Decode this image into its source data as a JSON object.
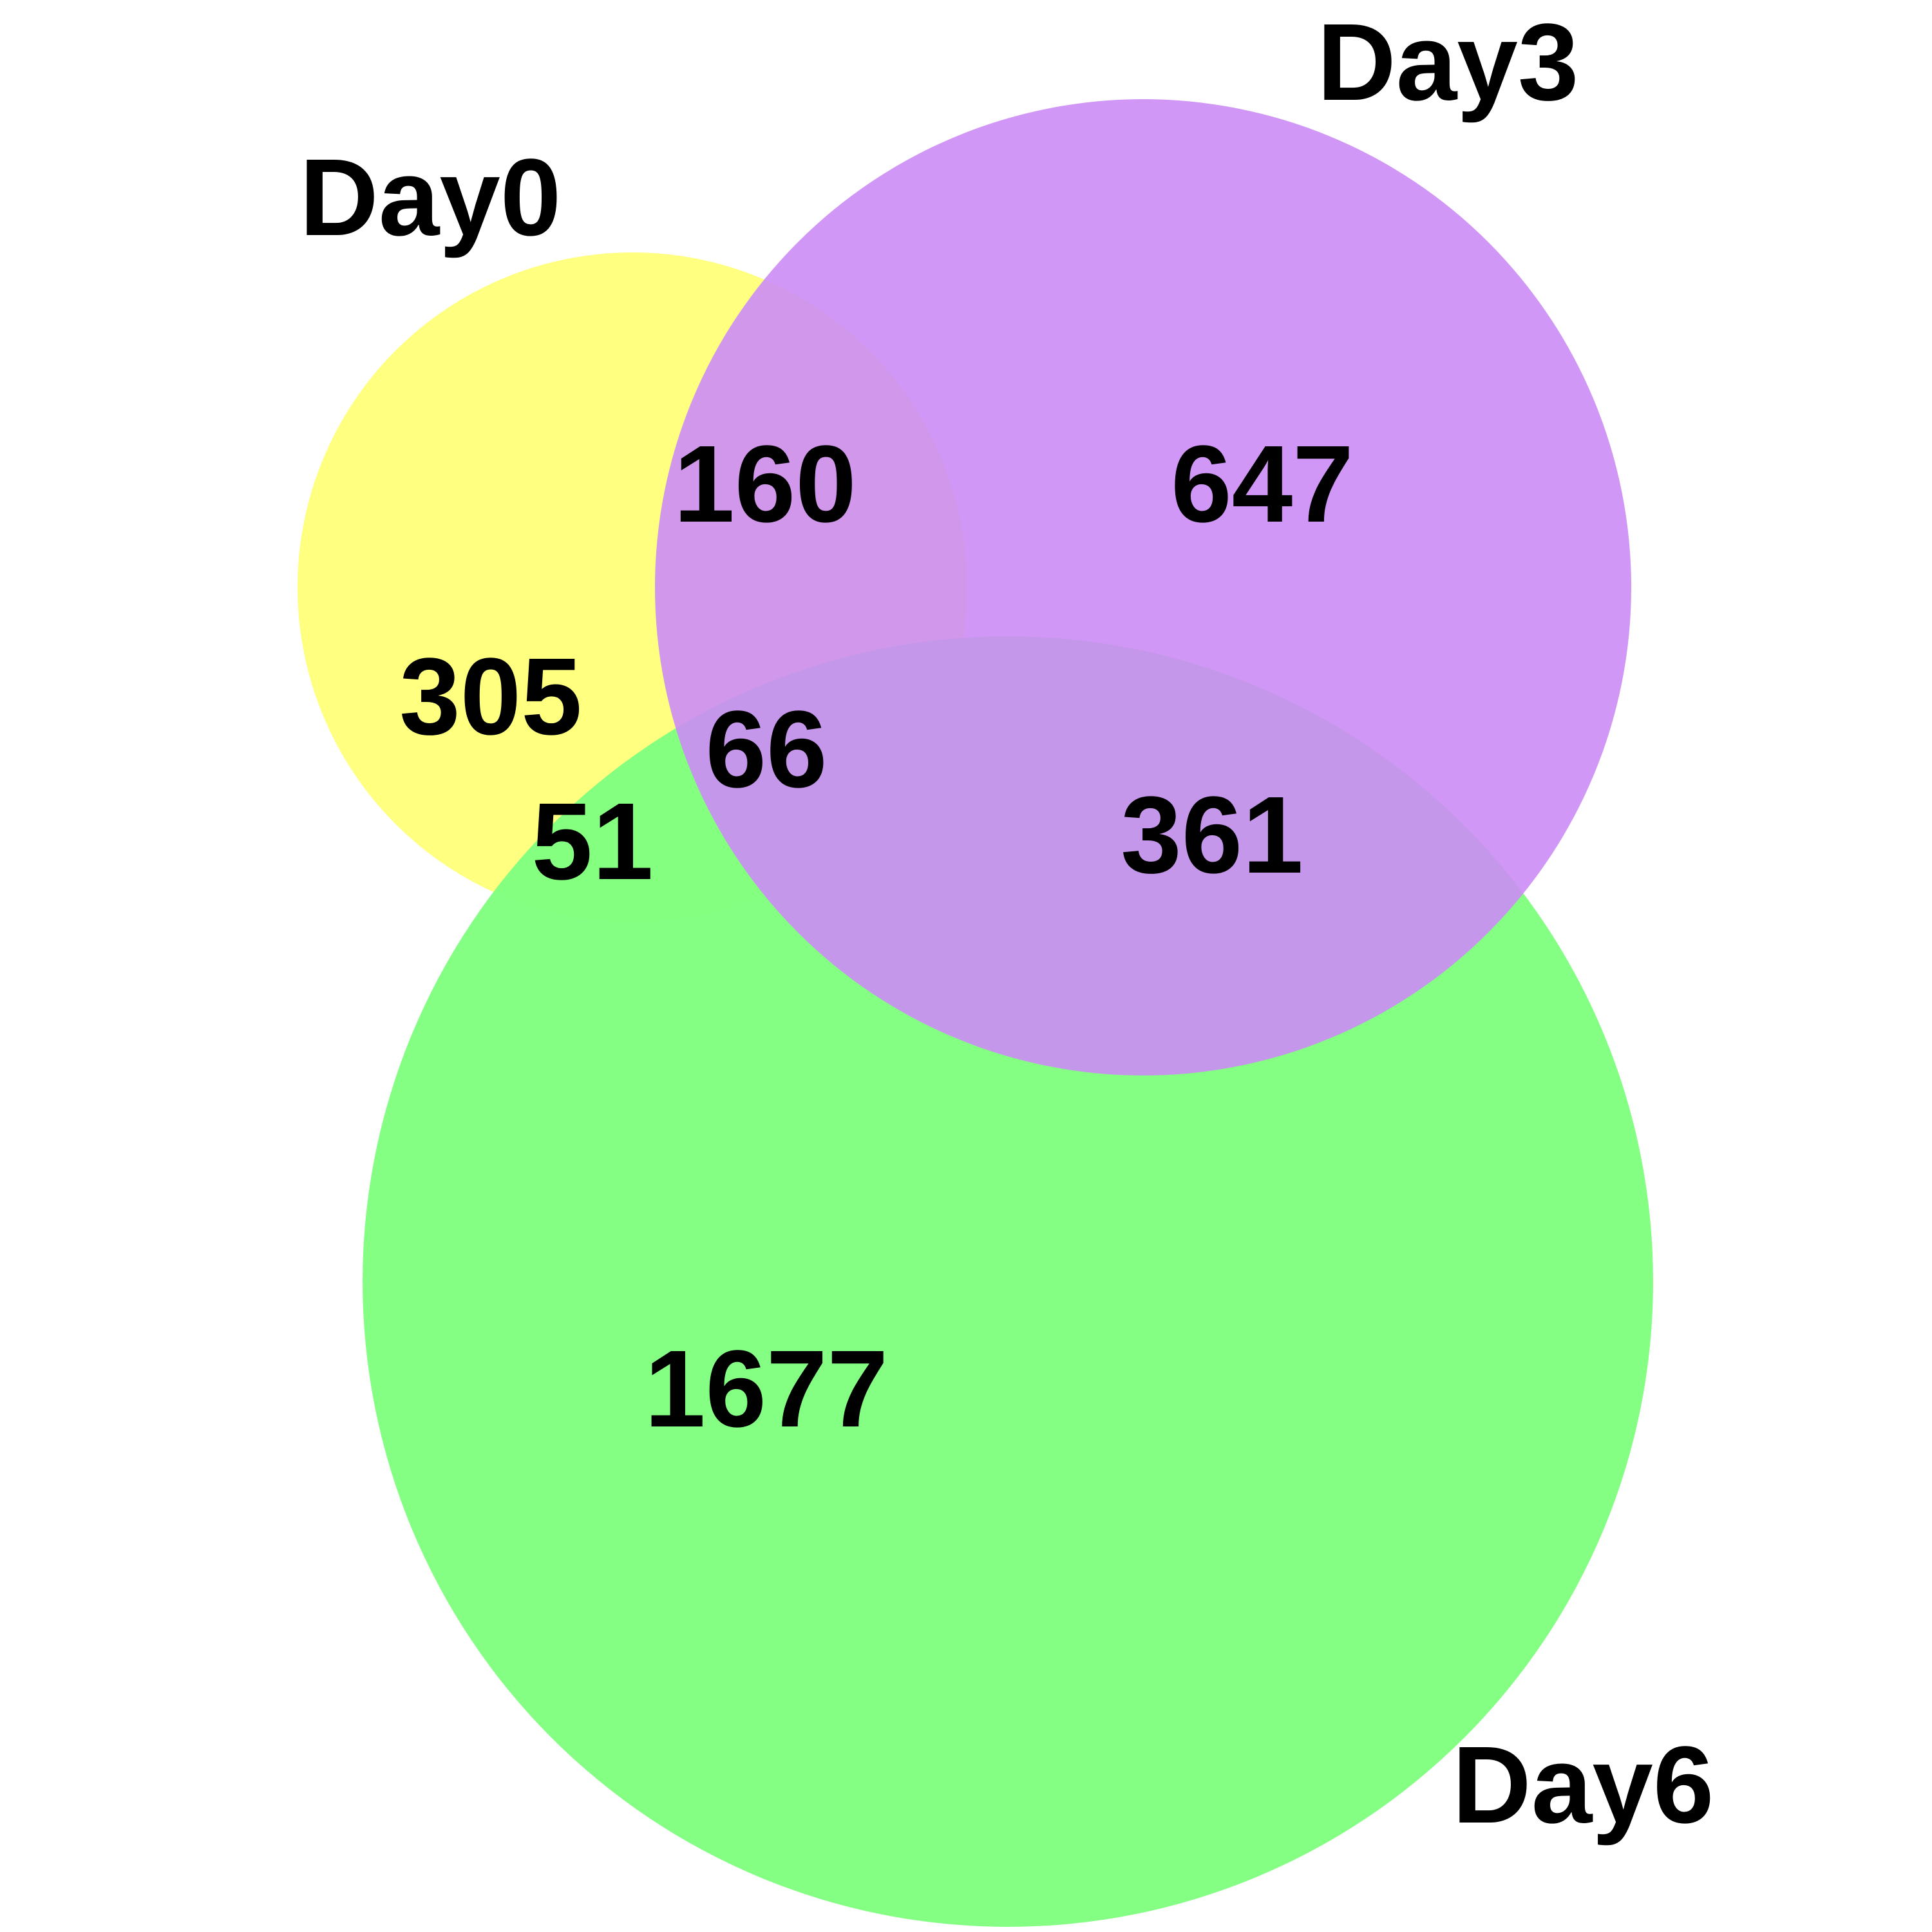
{
  "venn": {
    "sets": [
      {
        "key": "day0",
        "label": "Day0",
        "color": "#ffff80"
      },
      {
        "key": "day3",
        "label": "Day3",
        "color": "#cc8cf5"
      },
      {
        "key": "day6",
        "label": "Day6",
        "color": "#80ff80"
      }
    ],
    "regions": {
      "day0_only": "305",
      "day3_only": "647",
      "day6_only": "1677",
      "day0_day3": "160",
      "day0_day6": "51",
      "day3_day6": "361",
      "all_three": "66"
    }
  }
}
